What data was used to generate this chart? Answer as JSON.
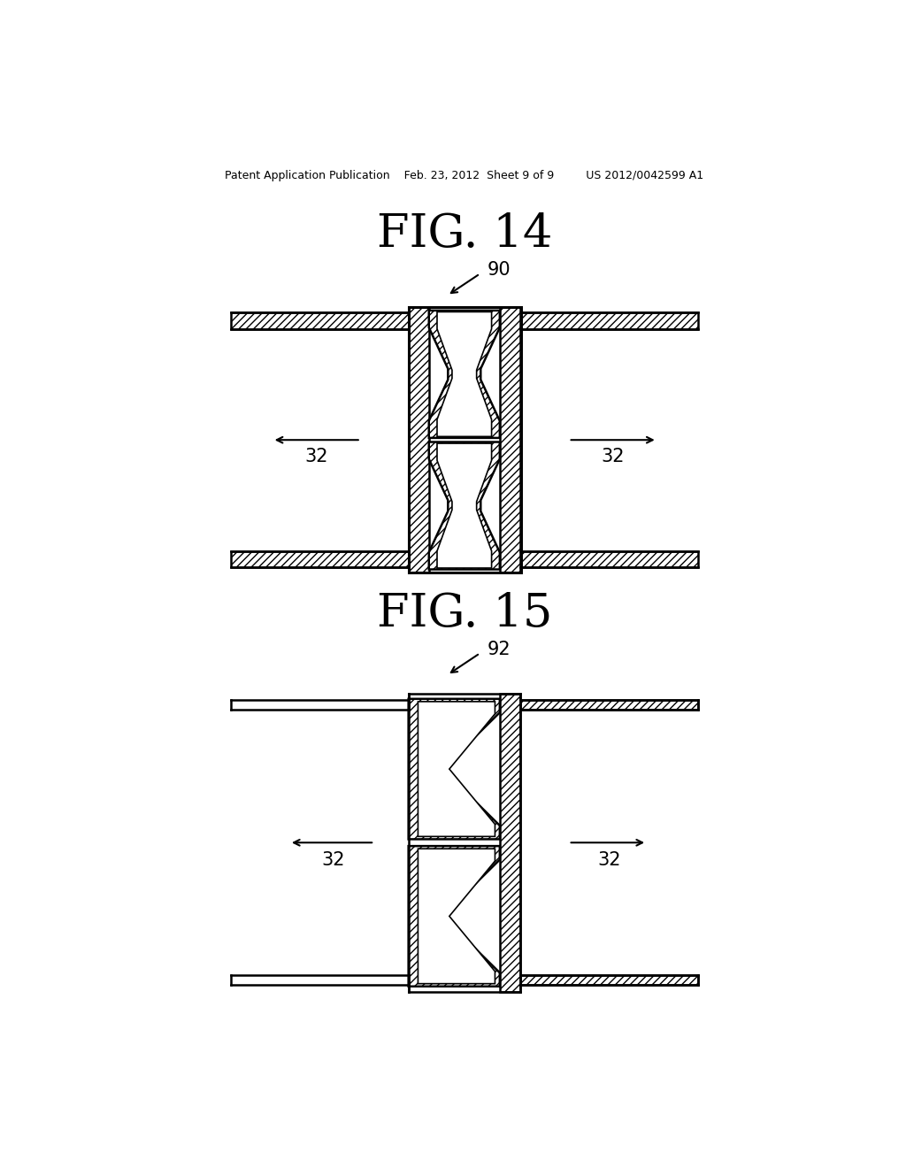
{
  "header": "Patent Application Publication    Feb. 23, 2012  Sheet 9 of 9         US 2012/0042599 A1",
  "fig14_label": "FIG. 14",
  "fig15_label": "FIG. 15",
  "label_90": "90",
  "label_92": "92",
  "label_32": "32",
  "bg_color": "#ffffff",
  "lc": "#000000"
}
